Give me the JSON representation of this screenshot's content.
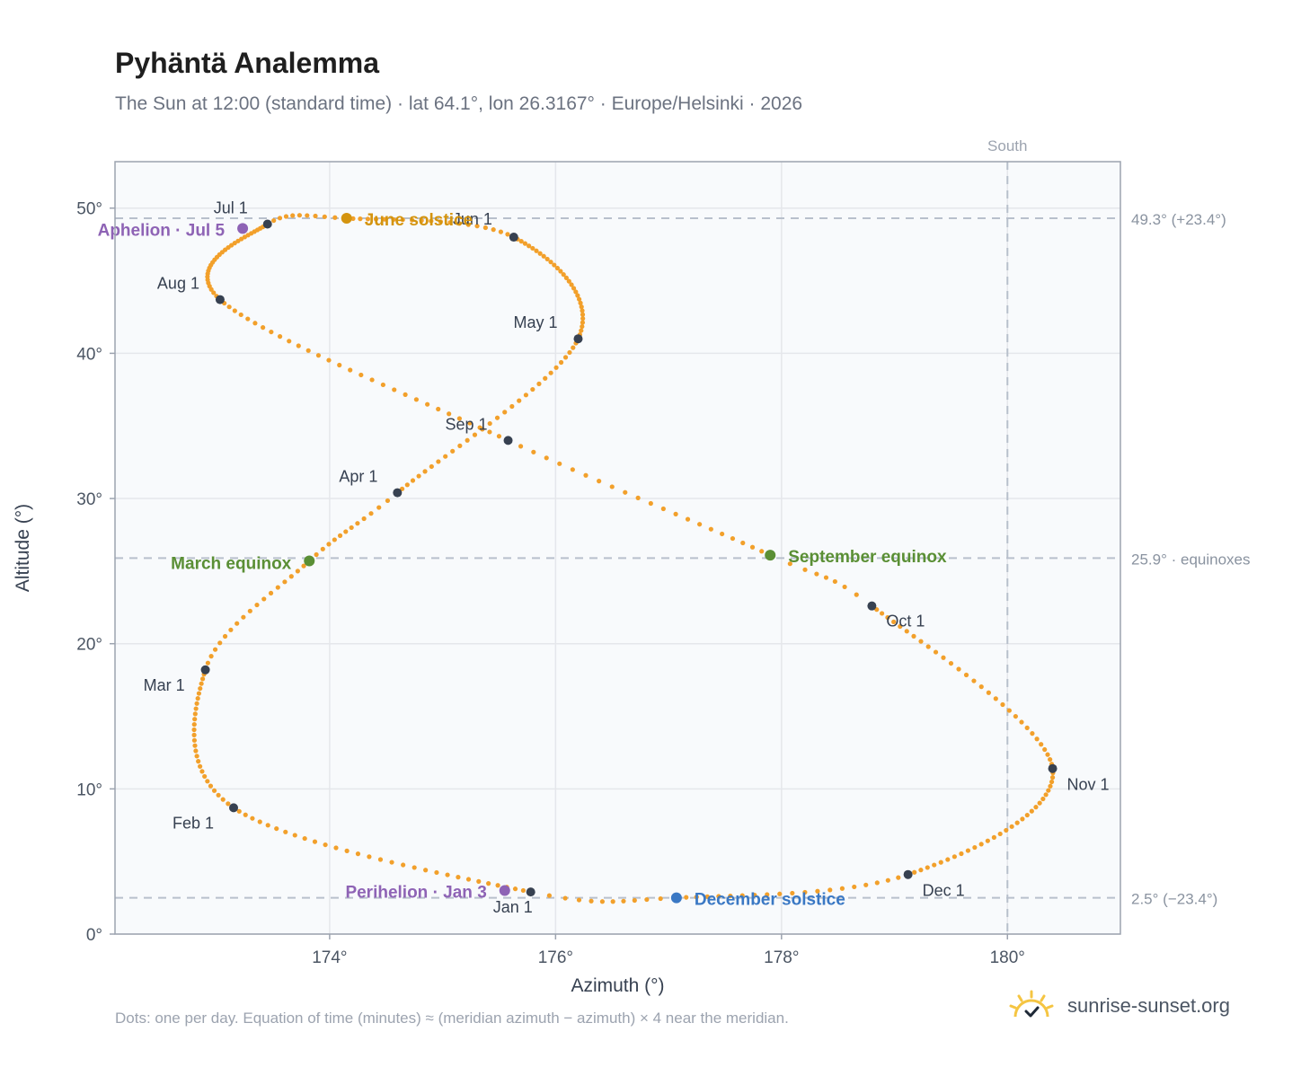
{
  "header": {
    "title": "Pyhäntä Analemma",
    "subtitle": "The Sun at 12:00 (standard time) · lat 64.1°, lon 26.3167° · Europe/Helsinki · 2026"
  },
  "footer": {
    "note": "Dots: one per day. Equation of time (minutes) ≈ (meridian azimuth − azimuth) × 4 near the meridian.",
    "brand": "sunrise-sunset.org"
  },
  "colors": {
    "path": "#f2a02b",
    "month_dot": "#374151",
    "equinox": "#5a8f35",
    "solstice_june": "#d4940f",
    "solstice_december": "#3a78c4",
    "apsis": "#8e63b5",
    "grid": "#e5e7eb",
    "reference_line": "#b8c0cc",
    "plot_bg": "#f8fafc",
    "frame": "#9ca3af"
  },
  "chart_data": {
    "type": "scatter",
    "xlabel": "Azimuth (°)",
    "ylabel": "Altitude (°)",
    "xlim": [
      172.1,
      181.0
    ],
    "ylim": [
      0,
      53.2
    ],
    "x_ticks": [
      174,
      176,
      178,
      180
    ],
    "x_tick_labels": [
      "174°",
      "176°",
      "178°",
      "180°"
    ],
    "y_ticks": [
      0,
      10,
      20,
      30,
      40,
      50
    ],
    "y_tick_labels": [
      "0°",
      "10°",
      "20°",
      "30°",
      "40°",
      "50°"
    ],
    "grid": true,
    "south_line": {
      "azimuth": 180,
      "label": "South"
    },
    "reference_lines": [
      {
        "altitude": 49.3,
        "label": "49.3° (+23.4°)"
      },
      {
        "altitude": 25.9,
        "label": "25.9° · equinoxes"
      },
      {
        "altitude": 2.5,
        "label": "2.5° (−23.4°)"
      }
    ],
    "path_key_points": [
      {
        "day": 0,
        "az": 175.78,
        "alt": 2.9
      },
      {
        "day": 31,
        "az": 173.15,
        "alt": 8.7
      },
      {
        "day": 59,
        "az": 172.9,
        "alt": 18.2
      },
      {
        "day": 77,
        "az": 173.82,
        "alt": 25.7
      },
      {
        "day": 90,
        "az": 174.6,
        "alt": 30.4
      },
      {
        "day": 120,
        "az": 176.2,
        "alt": 41.0
      },
      {
        "day": 151,
        "az": 175.63,
        "alt": 48.0
      },
      {
        "day": 171,
        "az": 174.15,
        "alt": 49.3
      },
      {
        "day": 181,
        "az": 173.45,
        "alt": 48.9
      },
      {
        "day": 212,
        "az": 173.03,
        "alt": 43.7
      },
      {
        "day": 243,
        "az": 175.58,
        "alt": 34.0
      },
      {
        "day": 265,
        "az": 177.9,
        "alt": 26.1
      },
      {
        "day": 273,
        "az": 178.8,
        "alt": 22.6
      },
      {
        "day": 304,
        "az": 180.4,
        "alt": 11.4
      },
      {
        "day": 334,
        "az": 179.12,
        "alt": 4.1
      },
      {
        "day": 354,
        "az": 177.07,
        "alt": 2.5
      },
      {
        "day": 365,
        "az": 175.78,
        "alt": 2.9
      }
    ],
    "month_markers": [
      {
        "label": "Jan 1",
        "az": 175.78,
        "alt": 2.9
      },
      {
        "label": "Feb 1",
        "az": 173.15,
        "alt": 8.7
      },
      {
        "label": "Mar 1",
        "az": 172.9,
        "alt": 18.2
      },
      {
        "label": "Apr 1",
        "az": 174.6,
        "alt": 30.4
      },
      {
        "label": "May 1",
        "az": 176.2,
        "alt": 41.0
      },
      {
        "label": "Jun 1",
        "az": 175.63,
        "alt": 48.0
      },
      {
        "label": "Jul 1",
        "az": 173.45,
        "alt": 48.9
      },
      {
        "label": "Aug 1",
        "az": 173.03,
        "alt": 43.7
      },
      {
        "label": "Sep 1",
        "az": 175.58,
        "alt": 34.0
      },
      {
        "label": "Oct 1",
        "az": 178.8,
        "alt": 22.6
      },
      {
        "label": "Nov 1",
        "az": 180.4,
        "alt": 11.4
      },
      {
        "label": "Dec 1",
        "az": 179.12,
        "alt": 4.1
      }
    ],
    "events": [
      {
        "label": "March equinox",
        "az": 173.82,
        "alt": 25.7,
        "color_key": "equinox"
      },
      {
        "label": "June solstice",
        "az": 174.15,
        "alt": 49.3,
        "color_key": "solstice_june"
      },
      {
        "label": "September equinox",
        "az": 177.9,
        "alt": 26.1,
        "color_key": "equinox"
      },
      {
        "label": "December solstice",
        "az": 177.07,
        "alt": 2.5,
        "color_key": "solstice_december"
      },
      {
        "label": "Aphelion · Jul 5",
        "az": 173.23,
        "alt": 48.6,
        "color_key": "apsis"
      },
      {
        "label": "Perihelion · Jan 3",
        "az": 175.55,
        "alt": 3.0,
        "color_key": "apsis"
      }
    ]
  }
}
